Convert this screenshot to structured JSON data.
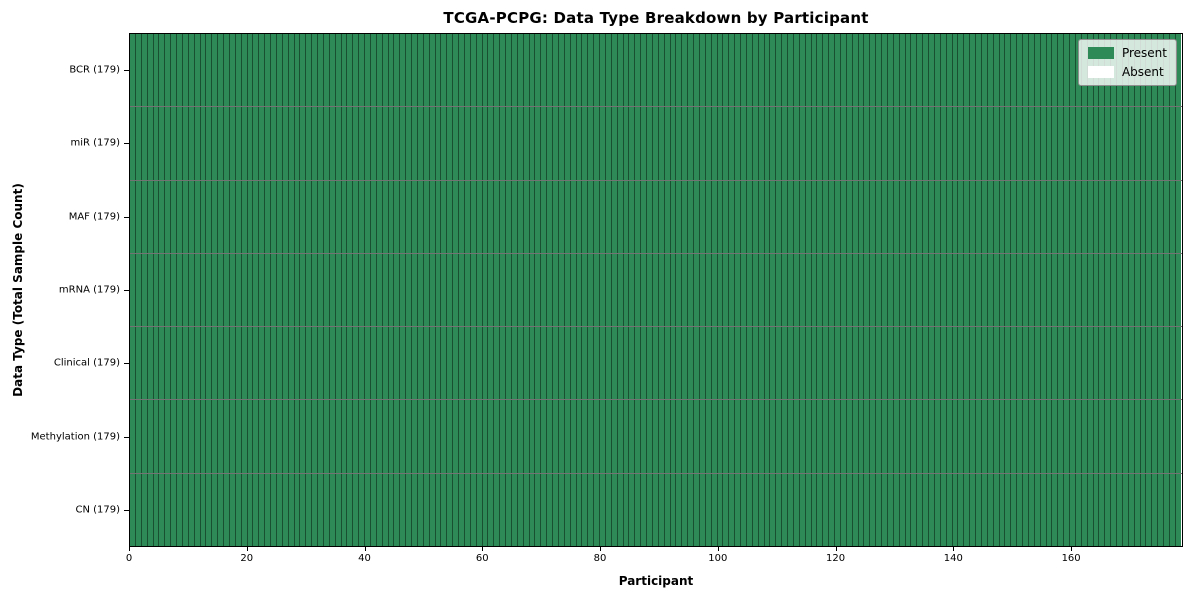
{
  "chart_data": {
    "type": "heatmap",
    "title": "TCGA-PCPG: Data Type Breakdown by Participant",
    "xlabel": "Participant",
    "ylabel": "Data Type (Total Sample Count)",
    "rows": [
      "BCR (179)",
      "miR (179)",
      "MAF (179)",
      "mRNA (179)",
      "Clinical (179)",
      "Methylation (179)",
      "CN (179)"
    ],
    "row_present_counts": [
      179,
      179,
      179,
      179,
      179,
      179,
      179
    ],
    "n_participants": 179,
    "xlim": [
      0,
      179
    ],
    "x_ticks": [
      0,
      20,
      40,
      60,
      80,
      100,
      120,
      140,
      160
    ],
    "grid": false,
    "legend_position": "upper right",
    "legend": [
      {
        "label": "Present",
        "color": "#2e8b57"
      },
      {
        "label": "Absent",
        "color": "#ffffff"
      }
    ]
  }
}
